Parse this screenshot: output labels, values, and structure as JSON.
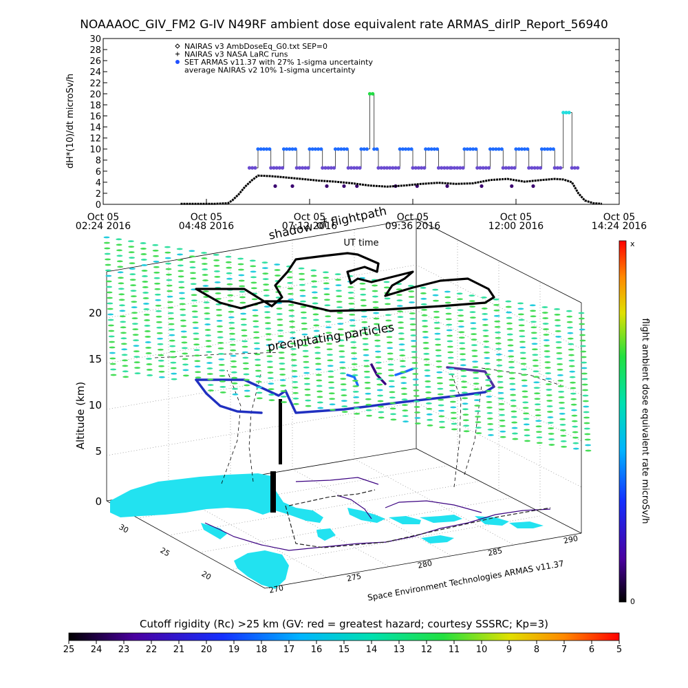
{
  "figure": {
    "title": "NOAAAOC_GIV_FM2 G-IV    N49RF  ambient dose equivalent rate ARMAS_dirlP_Report_56940",
    "credit": "Space Environment Technologies ARMAS v11.37",
    "colors": {
      "armas_low": "#3a0070",
      "armas_mid": "#6a4bd0",
      "armas_high": "#1e6bff",
      "armas_peak_cyan": "#22dede",
      "armas_peak_green": "#22dd44",
      "nairas_v3": "#000000",
      "flightpath_dash": "#000000",
      "precip_field": "#44dd66",
      "land": "#22e2f0"
    }
  },
  "chart_data": [
    {
      "type": "line",
      "title": "",
      "ylabel": "dH*(10)/dt microSv/h",
      "xlabel": "UT time",
      "ylim": [
        0,
        30
      ],
      "yticks": [
        0,
        2,
        4,
        6,
        8,
        10,
        12,
        14,
        16,
        18,
        20,
        22,
        24,
        26,
        28,
        30
      ],
      "x_unit": "UT hours",
      "xlim": [
        2.4,
        14.4
      ],
      "xticks": [
        {
          "x": 2.4,
          "line1": "Oct 05",
          "line2": "02:24 2016"
        },
        {
          "x": 4.8,
          "line1": "Oct 05",
          "line2": "04:48 2016"
        },
        {
          "x": 7.2,
          "line1": "Oct 05",
          "line2": "07:12 2016"
        },
        {
          "x": 9.6,
          "line1": "Oct 05",
          "line2": "09:36 2016"
        },
        {
          "x": 12.0,
          "line1": "Oct 05",
          "line2": "12:00 2016"
        },
        {
          "x": 14.4,
          "line1": "Oct 05",
          "line2": "14:24 2016"
        }
      ],
      "legend": [
        {
          "symbol": "diamond",
          "label": "NAIRAS v3 AmbDoseEq_G0.txt SEP=0"
        },
        {
          "symbol": "plus",
          "label": "NAIRAS v3 NASA LaRC runs"
        },
        {
          "symbol": "dot",
          "label": "SET ARMAS v11.37 with 27% 1-sigma uncertainty"
        },
        {
          "symbol": "none",
          "label": "average NAIRAS v2 10% 1-sigma uncertainty"
        }
      ],
      "legend_position": "top-left",
      "series": [
        {
          "name": "NAIRAS v3 AmbDoseEq_G0.txt SEP=0",
          "x": [
            4.2,
            4.6,
            5.0,
            5.3,
            5.4,
            5.55,
            5.7,
            5.85,
            6.0,
            6.3,
            6.6,
            7.0,
            7.4,
            7.8,
            8.2,
            8.6,
            9.0,
            9.4,
            9.8,
            10.2,
            10.6,
            11.0,
            11.4,
            11.8,
            12.2,
            12.6,
            12.9,
            13.1,
            13.3,
            13.45,
            13.6,
            13.8,
            14.0
          ],
          "y": [
            0.1,
            0.1,
            0.1,
            0.2,
            0.7,
            1.8,
            3.2,
            4.3,
            5.2,
            5.1,
            4.9,
            4.6,
            4.3,
            4.1,
            3.8,
            3.4,
            3.2,
            3.4,
            3.7,
            3.9,
            3.7,
            3.8,
            4.4,
            4.6,
            4.1,
            4.4,
            4.6,
            4.5,
            4.0,
            2.0,
            0.7,
            0.2,
            0.1
          ]
        },
        {
          "name": "SET ARMAS v11.37",
          "x": [
            5.8,
            6.0,
            6.3,
            6.6,
            6.9,
            7.2,
            7.5,
            7.8,
            8.1,
            8.4,
            8.6,
            8.7,
            8.8,
            9.0,
            9.3,
            9.6,
            9.9,
            10.2,
            10.5,
            10.8,
            11.1,
            11.4,
            11.7,
            12.0,
            12.3,
            12.6,
            12.9,
            13.1,
            13.3
          ],
          "y": [
            6.6,
            10.0,
            6.6,
            10.0,
            6.6,
            10.0,
            6.6,
            10.0,
            6.6,
            10.0,
            20.0,
            10.0,
            6.6,
            6.6,
            10.0,
            6.6,
            10.0,
            6.6,
            6.6,
            10.0,
            6.6,
            10.0,
            6.6,
            10.0,
            6.6,
            10.0,
            6.6,
            16.6,
            6.6
          ]
        }
      ],
      "armas_levels": [
        3.3,
        6.6,
        10.0,
        13.3,
        16.6,
        20.0
      ]
    },
    {
      "type": "scatter",
      "title": "",
      "zlabel": "Altitude (km)",
      "zticks": [
        0,
        5,
        10,
        15,
        20
      ],
      "lat_ticks": [
        20,
        25,
        30
      ],
      "lon_ticks": [
        270,
        275,
        280,
        285,
        290
      ],
      "annotations": [
        "shadow of flightpath",
        "precipitating particles"
      ],
      "note": "3D flight path over Gulf of Mexico / Caribbean"
    },
    {
      "type": "heatmap",
      "title": "Cutoff rigidity (Rc) >25 km (GV: red = greatest hazard; courtesy SSSRC; Kp=3)",
      "ticks": [
        25,
        24,
        23,
        22,
        21,
        20,
        19,
        18,
        17,
        16,
        15,
        14,
        13,
        12,
        11,
        10,
        9,
        8,
        7,
        6,
        5
      ]
    },
    {
      "type": "heatmap",
      "title": "flight ambient dose equivalent rate microSv/h",
      "min_label": "0",
      "max_label": "x"
    }
  ]
}
